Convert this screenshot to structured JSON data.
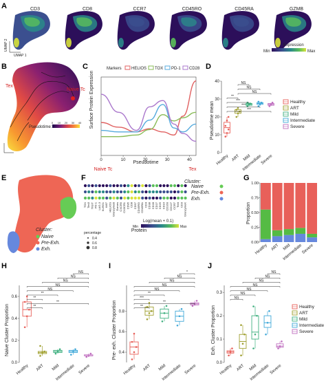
{
  "panels": {
    "a": {
      "letter": "A",
      "umap_titles": [
        "CD3",
        "CD8",
        "CCR7",
        "CD45RO",
        "CD45RA",
        "GZMB"
      ],
      "axis1": "UMAP 1",
      "axis2": "UMAP 2",
      "legend_title": "Expression",
      "legend_min": "Min",
      "legend_max": "Max",
      "colors": [
        "#2c0f5a",
        "#3b4f8f",
        "#2a8a8a",
        "#5bbf5a",
        "#d8e23a"
      ]
    },
    "b": {
      "letter": "B",
      "label_naive": "Naive Tc",
      "label_tex": "Tex",
      "legend_title": "Pseudotime:",
      "ticks": [
        "0",
        "10",
        "20",
        "30",
        "40"
      ],
      "colors": [
        "#1a0a4a",
        "#7a1f7a",
        "#d9434a",
        "#f88a3a",
        "#f9e23a"
      ]
    },
    "c": {
      "letter": "C",
      "markers_label": "Markers",
      "chart_data": {
        "type": "line",
        "xlabel": "Pseudotime",
        "ylabel": "Surface Protein Expression",
        "x_ticks": [
          0,
          10,
          20,
          30,
          40
        ],
        "x_range": [
          0,
          43
        ],
        "start_label": "Naive Tc",
        "end_label": "Tex",
        "series": [
          {
            "name": "HELIOS",
            "color": "#e06060",
            "x": [
              0,
              8,
              16,
              22,
              28,
              33,
              37,
              43
            ],
            "y": [
              0.42,
              0.36,
              0.3,
              0.34,
              0.3,
              0.26,
              0.5,
              0.95
            ]
          },
          {
            "name": "TOX",
            "color": "#88bb55",
            "x": [
              0,
              8,
              16,
              22,
              28,
              33,
              37,
              43
            ],
            "y": [
              0.24,
              0.24,
              0.26,
              0.33,
              0.52,
              0.44,
              0.48,
              0.55
            ]
          },
          {
            "name": "PD-1",
            "color": "#55aadd",
            "x": [
              0,
              8,
              16,
              22,
              28,
              33,
              37,
              43
            ],
            "y": [
              0.32,
              0.3,
              0.3,
              0.45,
              0.65,
              0.35,
              0.3,
              0.4
            ]
          },
          {
            "name": "CD28",
            "color": "#aa77cc",
            "x": [
              0,
              8,
              16,
              22,
              28,
              33,
              37,
              43
            ],
            "y": [
              0.78,
              0.55,
              0.32,
              0.62,
              0.7,
              0.4,
              0.28,
              0.18
            ]
          }
        ]
      }
    },
    "d": {
      "letter": "D",
      "chart_data": {
        "type": "box",
        "ylabel": "Pseudotime mean",
        "categories": [
          "Healthy",
          "ART",
          "Mild",
          "Intermediate",
          "Severe"
        ],
        "colors": [
          "#e8605a",
          "#a0a030",
          "#40b080",
          "#40a8d8",
          "#c070c0"
        ],
        "y_range": [
          0,
          40
        ],
        "y_ticks": [
          0,
          10,
          20,
          30,
          40
        ],
        "boxes": [
          {
            "min": 9,
            "q1": 11,
            "median": 14,
            "q3": 17,
            "max": 20,
            "points": [
              9,
              11,
              13,
              15,
              18,
              20
            ]
          },
          {
            "min": 20,
            "q1": 22,
            "median": 23,
            "q3": 24,
            "max": 25,
            "points": [
              20,
              22,
              23,
              24,
              25
            ]
          },
          {
            "min": 26,
            "q1": 26.5,
            "median": 27,
            "q3": 27.5,
            "max": 28,
            "points": [
              26,
              27,
              27.5,
              28
            ]
          },
          {
            "min": 26,
            "q1": 27,
            "median": 27.5,
            "q3": 28,
            "max": 28.5,
            "points": [
              26,
              27,
              28,
              28.5
            ]
          },
          {
            "min": 26,
            "q1": 26.5,
            "median": 27,
            "q3": 27.5,
            "max": 28,
            "points": [
              26,
              27,
              28
            ]
          }
        ],
        "significance": [
          {
            "from": 1,
            "to": 2,
            "label": "NS"
          },
          {
            "from": 1,
            "to": 3,
            "label": "NS"
          },
          {
            "from": 1,
            "to": 4,
            "label": "NS"
          },
          {
            "from": 0,
            "to": 1,
            "label": "**"
          },
          {
            "from": 0,
            "to": 2,
            "label": "***"
          },
          {
            "from": 0,
            "to": 3,
            "label": "***"
          },
          {
            "from": 0,
            "to": 4,
            "label": "***"
          }
        ],
        "legend": [
          "Healthy",
          "ART",
          "Mild",
          "Intermediate",
          "Severe"
        ]
      }
    },
    "e": {
      "letter": "E",
      "cluster_title": "Cluster:",
      "clusters": [
        {
          "name": "Naive",
          "color": "#66cc55"
        },
        {
          "name": "Pre-Exh.",
          "color": "#ee6655"
        },
        {
          "name": "Exh.",
          "color": "#6688dd"
        }
      ]
    },
    "f": {
      "letter": "F",
      "cluster_title": "Cluster:",
      "rows": [
        "Naive",
        "Pre-Exh.",
        "Exh."
      ],
      "row_colors": [
        "#66cc55",
        "#ee6655",
        "#6688dd"
      ],
      "proteins": [
        "TOX",
        "Tim3",
        "TIGIT",
        "PD-1",
        "LAG-3",
        "KLRG1",
        "Ki67",
        "HELIOS",
        "GranzymeB",
        "Eomes",
        "CXCR5",
        "CX3CR1",
        "CD95",
        "CD8",
        "CD57",
        "CD45RO",
        "CD45RA",
        "CD4",
        "CD38",
        "CD28",
        "CD27",
        "CD25",
        "CD16",
        "CD160",
        "CD127",
        "CCR7",
        "Tbet",
        "CD3",
        "GranzymeK"
      ],
      "xlabel": "Protein",
      "legend_title": "Log(mean + 0.1)",
      "legend_min": "Min",
      "legend_max": "Max",
      "size_title": "percentage",
      "size_values": [
        "0.4",
        "0.6",
        "0.8"
      ]
    },
    "g": {
      "letter": "G",
      "chart_data": {
        "type": "bar",
        "stacked": true,
        "ylabel": "Proportion",
        "categories": [
          "Healthy",
          "ART",
          "Mild",
          "Intermediate",
          "Severe"
        ],
        "y_ticks": [
          "0.00",
          "0.25",
          "0.50",
          "0.75",
          "1.00"
        ],
        "series": [
          {
            "name": "Exh.",
            "color": "#6688dd",
            "values": [
              0.05,
              0.1,
              0.12,
              0.14,
              0.08
            ]
          },
          {
            "name": "Naive",
            "color": "#55bb44",
            "values": [
              0.5,
              0.1,
              0.1,
              0.1,
              0.06
            ]
          },
          {
            "name": "Pre-Exh.",
            "color": "#e8605a",
            "values": [
              0.45,
              0.8,
              0.78,
              0.76,
              0.86
            ]
          }
        ]
      }
    },
    "h": {
      "letter": "H",
      "chart_data": {
        "type": "box",
        "ylabel": "Naive Cluster Proportion",
        "categories": [
          "Healthy",
          "ART",
          "Mild",
          "Intermediate",
          "Severe"
        ],
        "colors": [
          "#e8605a",
          "#a0a030",
          "#40b080",
          "#40a8d8",
          "#c070c0"
        ],
        "y_range": [
          0,
          0.7
        ],
        "y_ticks": [
          "0.0",
          "0.2",
          "0.4",
          "0.6"
        ],
        "y_tick_values": [
          0,
          0.2,
          0.4,
          0.6
        ],
        "boxes": [
          {
            "min": 0.32,
            "q1": 0.42,
            "median": 0.48,
            "q3": 0.55,
            "max": 0.6,
            "points": [
              0.32,
              0.42,
              0.48,
              0.55,
              0.6
            ]
          },
          {
            "min": 0.06,
            "q1": 0.08,
            "median": 0.09,
            "q3": 0.1,
            "max": 0.15,
            "points": [
              0.06,
              0.09,
              0.1,
              0.15
            ]
          },
          {
            "min": 0.08,
            "q1": 0.09,
            "median": 0.1,
            "q3": 0.11,
            "max": 0.12,
            "points": [
              0.08,
              0.1,
              0.12
            ]
          },
          {
            "min": 0.07,
            "q1": 0.09,
            "median": 0.1,
            "q3": 0.11,
            "max": 0.12,
            "points": [
              0.07,
              0.1,
              0.12
            ]
          },
          {
            "min": 0.05,
            "q1": 0.06,
            "median": 0.06,
            "q3": 0.07,
            "max": 0.08,
            "points": [
              0.05,
              0.06,
              0.08
            ]
          }
        ],
        "significance": [
          {
            "from": 3,
            "to": 4,
            "label": "NS"
          },
          {
            "from": 2,
            "to": 4,
            "label": "NS"
          },
          {
            "from": 1,
            "to": 4,
            "label": "NS"
          },
          {
            "from": 0,
            "to": 4,
            "label": "NS"
          },
          {
            "from": 0,
            "to": 3,
            "label": "NS"
          },
          {
            "from": 0,
            "to": 2,
            "label": "**"
          },
          {
            "from": 0,
            "to": 1,
            "label": "**"
          },
          {
            "from": 0,
            "to": 4,
            "label": "**"
          },
          {
            "from": 0,
            "to": 1,
            "label": "**"
          }
        ]
      }
    },
    "i": {
      "letter": "I",
      "chart_data": {
        "type": "box",
        "ylabel": "Pre- exh. Cluster Proportion",
        "categories": [
          "Healthy",
          "ART",
          "Mild",
          "Intermediate",
          "Severe"
        ],
        "colors": [
          "#e8605a",
          "#a0a030",
          "#40b080",
          "#40a8d8",
          "#c070c0"
        ],
        "y_range": [
          0.3,
          1.05
        ],
        "y_ticks": [
          "0.4",
          "0.6",
          "0.8"
        ],
        "y_tick_values": [
          0.4,
          0.6,
          0.8
        ],
        "boxes": [
          {
            "min": 0.33,
            "q1": 0.38,
            "median": 0.45,
            "q3": 0.5,
            "max": 0.58,
            "points": [
              0.33,
              0.4,
              0.45,
              0.5,
              0.58
            ]
          },
          {
            "min": 0.72,
            "q1": 0.76,
            "median": 0.8,
            "q3": 0.84,
            "max": 0.88,
            "points": [
              0.72,
              0.78,
              0.8,
              0.84,
              0.88
            ]
          },
          {
            "min": 0.7,
            "q1": 0.73,
            "median": 0.78,
            "q3": 0.82,
            "max": 0.85,
            "points": [
              0.7,
              0.78,
              0.85
            ]
          },
          {
            "min": 0.66,
            "q1": 0.7,
            "median": 0.75,
            "q3": 0.8,
            "max": 0.82,
            "points": [
              0.66,
              0.75,
              0.82
            ]
          },
          {
            "min": 0.85,
            "q1": 0.86,
            "median": 0.87,
            "q3": 0.88,
            "max": 0.9,
            "points": [
              0.85,
              0.87,
              0.9
            ]
          }
        ],
        "significance": [
          {
            "from": 3,
            "to": 4,
            "label": "*"
          },
          {
            "from": 2,
            "to": 4,
            "label": "NS"
          },
          {
            "from": 1,
            "to": 4,
            "label": "NS"
          },
          {
            "from": 0,
            "to": 4,
            "label": "NS"
          },
          {
            "from": 0,
            "to": 3,
            "label": "NS"
          },
          {
            "from": 0,
            "to": 2,
            "label": "**"
          },
          {
            "from": 0,
            "to": 1,
            "label": "***"
          },
          {
            "from": 0,
            "to": 4,
            "label": "**"
          },
          {
            "from": 0,
            "to": 1,
            "label": "**"
          }
        ]
      }
    },
    "j": {
      "letter": "J",
      "chart_data": {
        "type": "box",
        "ylabel": "Exh. Cluster Proportion",
        "categories": [
          "Healthy",
          "ART",
          "Mild",
          "Intermediate",
          "Severe"
        ],
        "colors": [
          "#e8605a",
          "#a0a030",
          "#40b080",
          "#40a8d8",
          "#c070c0"
        ],
        "y_range": [
          0,
          0.33
        ],
        "y_ticks": [
          "0.0",
          "0.1",
          "0.2",
          "0.3"
        ],
        "y_tick_values": [
          0,
          0.1,
          0.2,
          0.3
        ],
        "boxes": [
          {
            "min": 0.03,
            "q1": 0.04,
            "median": 0.045,
            "q3": 0.05,
            "max": 0.06,
            "points": [
              0.03,
              0.045,
              0.06
            ]
          },
          {
            "min": 0.03,
            "q1": 0.06,
            "median": 0.09,
            "q3": 0.12,
            "max": 0.16,
            "points": [
              0.03,
              0.08,
              0.12,
              0.16
            ]
          },
          {
            "min": 0.06,
            "q1": 0.1,
            "median": 0.13,
            "q3": 0.2,
            "max": 0.24,
            "points": [
              0.06,
              0.12,
              0.2,
              0.24
            ]
          },
          {
            "min": 0.12,
            "q1": 0.15,
            "median": 0.17,
            "q3": 0.2,
            "max": 0.22,
            "points": [
              0.12,
              0.17,
              0.22
            ]
          },
          {
            "min": 0.06,
            "q1": 0.065,
            "median": 0.07,
            "q3": 0.08,
            "max": 0.09,
            "points": [
              0.06,
              0.07,
              0.09
            ]
          }
        ],
        "significance": [
          {
            "from": 3,
            "to": 4,
            "label": "NS"
          },
          {
            "from": 2,
            "to": 4,
            "label": "NS"
          },
          {
            "from": 1,
            "to": 4,
            "label": "NS"
          },
          {
            "from": 0,
            "to": 4,
            "label": "NS"
          },
          {
            "from": 0,
            "to": 3,
            "label": "NS"
          },
          {
            "from": 0,
            "to": 2,
            "label": "NS"
          },
          {
            "from": 0,
            "to": 1,
            "label": "NS"
          }
        ],
        "legend": [
          "Healthy",
          "ART",
          "Mild",
          "Intermediate",
          "Severe"
        ]
      }
    }
  }
}
